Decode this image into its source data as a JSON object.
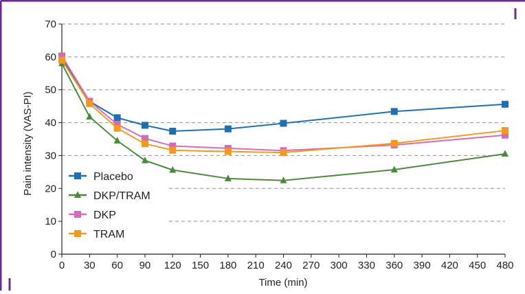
{
  "colors": {
    "frame": "#6a2c8e",
    "background": "#ffffff",
    "grid": "#8c8c8c",
    "axis": "#222222"
  },
  "chart_data": {
    "type": "line",
    "title": "",
    "xlabel": "Time (min)",
    "ylabel": "Pain intensity (VAS-PI)",
    "xlim": [
      0,
      480
    ],
    "ylim": [
      0,
      70
    ],
    "xticks": [
      0,
      30,
      60,
      90,
      120,
      150,
      180,
      210,
      240,
      270,
      300,
      330,
      360,
      390,
      420,
      450,
      480
    ],
    "yticks": [
      0,
      10,
      20,
      30,
      40,
      50,
      60,
      70
    ],
    "grid": "horizontal dashed",
    "legend_position": "bottom-left",
    "x": [
      0,
      30,
      60,
      90,
      120,
      180,
      240,
      360,
      480
    ],
    "series": [
      {
        "name": "Placebo",
        "color": "#1f6fb3",
        "marker": "square",
        "values": [
          59.5,
          46.5,
          41.5,
          39.2,
          37.4,
          38.1,
          39.8,
          43.4,
          45.6
        ]
      },
      {
        "name": "DKP/TRAM",
        "color": "#4a8a3e",
        "marker": "triangle",
        "values": [
          58.0,
          41.8,
          34.5,
          28.5,
          25.6,
          23.0,
          22.4,
          25.7,
          30.5
        ]
      },
      {
        "name": "DKP",
        "color": "#d46bb8",
        "marker": "square",
        "values": [
          60.3,
          46.5,
          39.5,
          35.2,
          32.9,
          32.2,
          31.5,
          33.2,
          36.2
        ]
      },
      {
        "name": "TRAM",
        "color": "#f39a1e",
        "marker": "square",
        "values": [
          59.0,
          45.8,
          38.3,
          33.6,
          31.6,
          31.2,
          30.9,
          33.7,
          37.6
        ]
      }
    ]
  }
}
